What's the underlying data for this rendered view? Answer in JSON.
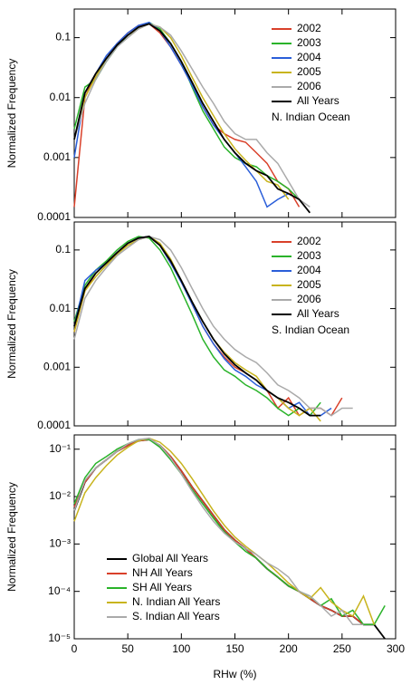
{
  "chart_data": [
    {
      "type": "line",
      "ylabel": "Normalized Frequency",
      "annotation": "N. Indian Ocean",
      "log_y": true,
      "legend": "upper right",
      "x": [
        0,
        10,
        20,
        30,
        40,
        50,
        60,
        70,
        80,
        90,
        100,
        110,
        120,
        130,
        140,
        150,
        160,
        170,
        180,
        190,
        200,
        210,
        220,
        230,
        240,
        250,
        260,
        270
      ],
      "xlim": [
        0,
        300
      ],
      "xticks": [
        0,
        50,
        100,
        150,
        200,
        250,
        300
      ],
      "ylim": [
        0.0001,
        0.3
      ],
      "yticks": [
        0.0001,
        0.001,
        0.01,
        0.1
      ],
      "series": [
        {
          "name": "2002",
          "color": "#d9402a",
          "values": [
            0.00015,
            0.01,
            0.025,
            0.045,
            0.08,
            0.12,
            0.16,
            0.17,
            0.12,
            0.07,
            0.035,
            0.016,
            0.007,
            0.0035,
            0.0025,
            0.002,
            0.0018,
            0.0012,
            0.0008,
            0.0004,
            0.0003,
            0.00015,
            null,
            null,
            null,
            null,
            null,
            null
          ]
        },
        {
          "name": "2003",
          "color": "#2ab32a",
          "values": [
            0.003,
            0.015,
            0.02,
            0.04,
            0.07,
            0.11,
            0.14,
            0.18,
            0.14,
            0.08,
            0.04,
            0.015,
            0.006,
            0.003,
            0.0015,
            0.001,
            0.0008,
            0.0007,
            0.0005,
            0.0004,
            0.0003,
            0.0002,
            null,
            null,
            null,
            null,
            null,
            null
          ]
        },
        {
          "name": "2004",
          "color": "#2a5ed9",
          "values": [
            0.001,
            0.012,
            0.025,
            0.05,
            0.08,
            0.12,
            0.16,
            0.18,
            0.13,
            0.07,
            0.035,
            0.016,
            0.007,
            0.0035,
            0.002,
            0.0012,
            0.0007,
            0.0004,
            0.00015,
            0.0002,
            0.00025,
            null,
            null,
            null,
            null,
            null,
            null,
            null
          ]
        },
        {
          "name": "2005",
          "color": "#c8b41e",
          "values": [
            0.002,
            0.01,
            0.022,
            0.045,
            0.075,
            0.11,
            0.14,
            0.17,
            0.15,
            0.1,
            0.05,
            0.022,
            0.01,
            0.005,
            0.0025,
            0.0014,
            0.0009,
            0.0006,
            0.0004,
            0.00035,
            0.0002,
            null,
            null,
            null,
            null,
            null,
            null,
            null
          ]
        },
        {
          "name": "2006",
          "color": "#aaaaaa",
          "values": [
            0.002,
            0.008,
            0.02,
            0.04,
            0.07,
            0.1,
            0.14,
            0.17,
            0.15,
            0.11,
            0.06,
            0.03,
            0.015,
            0.008,
            0.004,
            0.0025,
            0.002,
            0.002,
            0.0012,
            0.0008,
            0.0004,
            0.0002,
            0.00015,
            null,
            null,
            null,
            null,
            null
          ]
        },
        {
          "name": "All Years",
          "color": "#000000",
          "values": [
            0.002,
            0.012,
            0.025,
            0.045,
            0.075,
            0.11,
            0.15,
            0.17,
            0.13,
            0.08,
            0.04,
            0.018,
            0.008,
            0.004,
            0.002,
            0.0012,
            0.0008,
            0.0006,
            0.0005,
            0.0003,
            0.00025,
            0.0002,
            0.00012,
            null,
            null,
            null,
            null,
            null
          ]
        }
      ]
    },
    {
      "type": "line",
      "ylabel": "Normalized Frequency",
      "annotation": "S. Indian Ocean",
      "log_y": true,
      "legend": "upper right",
      "x": [
        0,
        10,
        20,
        30,
        40,
        50,
        60,
        70,
        80,
        90,
        100,
        110,
        120,
        130,
        140,
        150,
        160,
        170,
        180,
        190,
        200,
        210,
        220,
        230,
        240,
        250,
        260,
        270
      ],
      "xlim": [
        0,
        300
      ],
      "xticks": [
        0,
        50,
        100,
        150,
        200,
        250,
        300
      ],
      "ylim": [
        0.0001,
        0.3
      ],
      "yticks": [
        0.0001,
        0.001,
        0.01,
        0.1
      ],
      "series": [
        {
          "name": "2002",
          "color": "#d9402a",
          "values": [
            0.004,
            0.02,
            0.04,
            0.06,
            0.09,
            0.13,
            0.16,
            0.17,
            0.12,
            0.06,
            0.03,
            0.012,
            0.005,
            0.0025,
            0.0015,
            0.001,
            0.0008,
            0.0006,
            0.0004,
            0.0002,
            0.0003,
            0.00015,
            0.0002,
            0.0002,
            0.00015,
            0.0003,
            null,
            null
          ]
        },
        {
          "name": "2003",
          "color": "#2ab32a",
          "values": [
            0.006,
            0.025,
            0.045,
            0.065,
            0.1,
            0.14,
            0.17,
            0.16,
            0.1,
            0.05,
            0.02,
            0.008,
            0.003,
            0.0015,
            0.0009,
            0.0007,
            0.0005,
            0.0004,
            0.0003,
            0.0002,
            0.00015,
            0.0002,
            0.00015,
            0.00025,
            null,
            null,
            null,
            null
          ]
        },
        {
          "name": "2004",
          "color": "#2a5ed9",
          "values": [
            0.005,
            0.03,
            0.045,
            0.06,
            0.09,
            0.13,
            0.16,
            0.17,
            0.12,
            0.06,
            0.028,
            0.012,
            0.005,
            0.0025,
            0.0014,
            0.0009,
            0.0007,
            0.0005,
            0.0004,
            0.0003,
            0.0002,
            0.00025,
            0.00015,
            0.00015,
            0.0002,
            null,
            null,
            null
          ]
        },
        {
          "name": "2005",
          "color": "#c8b41e",
          "values": [
            0.004,
            0.02,
            0.035,
            0.055,
            0.085,
            0.12,
            0.15,
            0.17,
            0.13,
            0.07,
            0.03,
            0.013,
            0.006,
            0.003,
            0.0018,
            0.0012,
            0.0009,
            0.0007,
            0.0004,
            0.0003,
            0.0002,
            0.00015,
            0.0002,
            0.00012,
            null,
            null,
            null,
            null
          ]
        },
        {
          "name": "2006",
          "color": "#aaaaaa",
          "values": [
            0.003,
            0.015,
            0.03,
            0.05,
            0.08,
            0.11,
            0.15,
            0.17,
            0.15,
            0.1,
            0.05,
            0.022,
            0.01,
            0.005,
            0.003,
            0.002,
            0.0015,
            0.0012,
            0.0008,
            0.0005,
            0.0004,
            0.0003,
            0.0002,
            0.0002,
            0.00015,
            0.0002,
            0.0002,
            null
          ]
        },
        {
          "name": "All Years",
          "color": "#000000",
          "values": [
            0.005,
            0.022,
            0.04,
            0.06,
            0.09,
            0.13,
            0.16,
            0.17,
            0.12,
            0.065,
            0.03,
            0.013,
            0.006,
            0.003,
            0.0017,
            0.0011,
            0.0008,
            0.0006,
            0.0004,
            0.0003,
            0.00025,
            0.0002,
            0.00015,
            0.00015,
            null,
            null,
            null,
            null
          ]
        }
      ]
    },
    {
      "type": "line",
      "ylabel": "Normalized Frequency",
      "xlabel": "RHw (%)",
      "log_y": true,
      "legend": "lower left",
      "x": [
        0,
        10,
        20,
        30,
        40,
        50,
        60,
        70,
        80,
        90,
        100,
        110,
        120,
        130,
        140,
        150,
        160,
        170,
        180,
        190,
        200,
        210,
        220,
        230,
        240,
        250,
        260,
        270,
        280,
        290
      ],
      "xlim": [
        0,
        300
      ],
      "xticks": [
        0,
        50,
        100,
        150,
        200,
        250,
        300
      ],
      "ylim": [
        1e-05,
        0.2
      ],
      "yticks": [
        {
          "value": 1e-05,
          "label": "10⁻⁵"
        },
        {
          "value": 0.0001,
          "label": "10⁻⁴"
        },
        {
          "value": 0.001,
          "label": "10⁻³"
        },
        {
          "value": 0.01,
          "label": "10⁻²"
        },
        {
          "value": 0.1,
          "label": "10⁻¹"
        }
      ],
      "series": [
        {
          "name": "Global All Years",
          "color": "#000000",
          "values": [
            0.005,
            0.02,
            0.04,
            0.06,
            0.09,
            0.12,
            0.15,
            0.16,
            0.12,
            0.07,
            0.035,
            0.016,
            0.008,
            0.004,
            0.002,
            0.0012,
            0.0008,
            0.0005,
            0.0003,
            0.0002,
            0.00013,
            0.0001,
            7e-05,
            5e-05,
            4e-05,
            3e-05,
            3e-05,
            2e-05,
            2e-05,
            1e-05
          ]
        },
        {
          "name": "NH All Years",
          "color": "#d9402a",
          "values": [
            0.006,
            0.02,
            0.04,
            0.06,
            0.09,
            0.12,
            0.15,
            0.16,
            0.12,
            0.07,
            0.035,
            0.016,
            0.008,
            0.004,
            0.002,
            0.0012,
            0.0008,
            0.0005,
            0.0003,
            0.0002,
            0.00013,
            0.0001,
            7e-05,
            5e-05,
            4e-05,
            3e-05,
            3e-05,
            2e-05,
            null,
            null
          ]
        },
        {
          "name": "SH All Years",
          "color": "#2ab32a",
          "values": [
            0.007,
            0.025,
            0.05,
            0.07,
            0.1,
            0.13,
            0.16,
            0.16,
            0.11,
            0.06,
            0.03,
            0.014,
            0.007,
            0.0035,
            0.0018,
            0.0011,
            0.0007,
            0.0005,
            0.0003,
            0.0002,
            0.00013,
            0.0001,
            8e-05,
            5e-05,
            7e-05,
            3e-05,
            4e-05,
            2e-05,
            2e-05,
            5e-05
          ]
        },
        {
          "name": "N. Indian All Years",
          "color": "#c8b41e",
          "values": [
            0.003,
            0.012,
            0.025,
            0.045,
            0.075,
            0.11,
            0.15,
            0.17,
            0.14,
            0.09,
            0.05,
            0.024,
            0.011,
            0.005,
            0.0025,
            0.0014,
            0.0009,
            0.0006,
            0.0004,
            0.00025,
            0.00015,
            0.0001,
            7e-05,
            0.00012,
            6e-05,
            4e-05,
            3e-05,
            8e-05,
            2e-05,
            null
          ]
        },
        {
          "name": "S. Indian All Years",
          "color": "#aaaaaa",
          "values": [
            0.005,
            0.022,
            0.04,
            0.06,
            0.09,
            0.13,
            0.16,
            0.17,
            0.12,
            0.065,
            0.03,
            0.013,
            0.006,
            0.003,
            0.0017,
            0.0011,
            0.0008,
            0.0006,
            0.0004,
            0.0003,
            0.0002,
            0.0001,
            8e-05,
            5e-05,
            3e-05,
            4e-05,
            2e-05,
            2e-05,
            null,
            null
          ]
        }
      ]
    }
  ]
}
